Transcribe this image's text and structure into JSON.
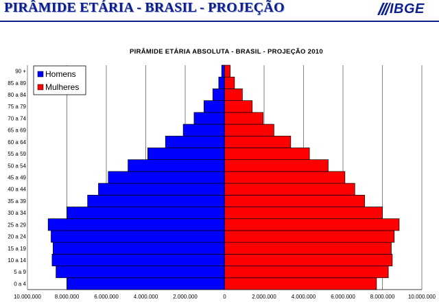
{
  "slide": {
    "title": "PIRÂMIDE ETÁRIA - BRASIL - PROJEÇÃO",
    "logo_text": "IBGE",
    "colors": {
      "title": "#0b1f8f"
    }
  },
  "chart_data": {
    "type": "bar",
    "orientation": "horizontal-population-pyramid",
    "title": "PIRÂMIDE ETÁRIA ABSOLUTA - BRASIL - PROJEÇÃO 2010",
    "categories": [
      "0 a 4",
      "5 a 9",
      "10 a 14",
      "15 a 19",
      "20 a 24",
      "25 a 29",
      "30 a 34",
      "35 a 39",
      "40 a 44",
      "45 a 49",
      "50 a 54",
      "55 a 59",
      "60 a 64",
      "65 a 69",
      "70 a 74",
      "75 a 79",
      "80 a 84",
      "85 a 89",
      "90 +"
    ],
    "series": [
      {
        "name": "Homens",
        "color": "#0000ff",
        "values": [
          8000000,
          8550000,
          8750000,
          8700000,
          8800000,
          8950000,
          8000000,
          6950000,
          6400000,
          5900000,
          4900000,
          3900000,
          3000000,
          2100000,
          1550000,
          1050000,
          600000,
          300000,
          150000
        ]
      },
      {
        "name": "Mulheres",
        "color": "#ff0000",
        "values": [
          7700000,
          8300000,
          8500000,
          8450000,
          8600000,
          8850000,
          8000000,
          7100000,
          6600000,
          6100000,
          5250000,
          4300000,
          3350000,
          2500000,
          1950000,
          1400000,
          900000,
          500000,
          280000
        ]
      }
    ],
    "xlim": [
      -10000000,
      10000000
    ],
    "x_ticks": [
      "10.000.000",
      "8.000.000",
      "6.000.000",
      "4.000.000",
      "2.000.000",
      "0",
      "2.000.000",
      "4.000.000",
      "6.000.000",
      "8.000.000",
      "10.000.000"
    ],
    "grid": "vertical",
    "legend": "top-left"
  }
}
